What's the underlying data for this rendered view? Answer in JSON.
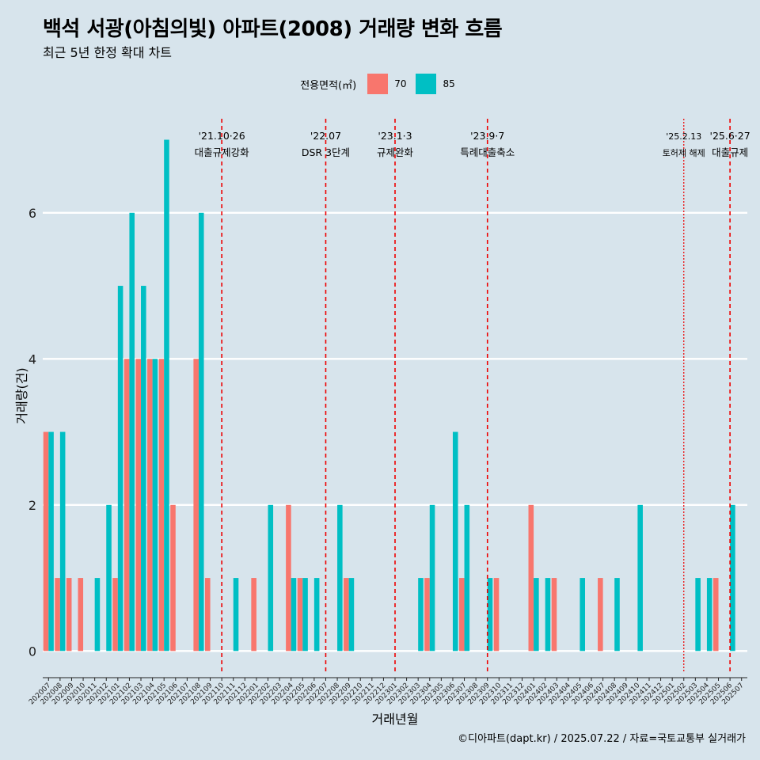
{
  "title": "백석 서광(아침의빛) 아파트(2008) 거래량 변화 흐름",
  "subtitle": "최근 5년 한정 확대 차트",
  "caption": "©디아파트(dapt.kr) / 2025.07.22 / 자료=국토교통부 실거래가",
  "legend": {
    "title": "전용면적(㎡)",
    "items": [
      {
        "label": "70",
        "color": "#f8766d"
      },
      {
        "label": "85",
        "color": "#00bfc4"
      }
    ]
  },
  "chart_data": {
    "type": "bar",
    "xlabel": "거래년월",
    "ylabel": "거래량(건)",
    "ylim": [
      -0.3,
      7.45
    ],
    "yticks": [
      0,
      2,
      4,
      6
    ],
    "categories": [
      "202007",
      "202008",
      "202009",
      "202010",
      "202011",
      "202012",
      "202101",
      "202102",
      "202103",
      "202104",
      "202105",
      "202106",
      "202107",
      "202108",
      "202109",
      "202110",
      "202111",
      "202112",
      "202201",
      "202202",
      "202203",
      "202204",
      "202205",
      "202206",
      "202207",
      "202208",
      "202209",
      "202210",
      "202211",
      "202212",
      "202301",
      "202302",
      "202303",
      "202304",
      "202305",
      "202306",
      "202307",
      "202308",
      "202309",
      "202310",
      "202311",
      "202312",
      "202401",
      "202402",
      "202403",
      "202404",
      "202405",
      "202406",
      "202407",
      "202408",
      "202409",
      "202410",
      "202411",
      "202412",
      "202501",
      "202502",
      "202503",
      "202504",
      "202505",
      "202506",
      "202507"
    ],
    "series": [
      {
        "name": "70",
        "color": "#f8766d",
        "values": [
          3,
          1,
          1,
          1,
          0,
          0,
          1,
          4,
          4,
          4,
          4,
          2,
          0,
          4,
          1,
          0,
          0,
          0,
          1,
          0,
          0,
          2,
          1,
          0,
          0,
          0,
          1,
          0,
          0,
          0,
          0,
          0,
          0,
          1,
          0,
          0,
          1,
          0,
          0,
          1,
          0,
          0,
          2,
          0,
          1,
          0,
          0,
          0,
          1,
          0,
          0,
          0,
          0,
          0,
          0,
          0,
          0,
          0,
          1,
          0,
          0
        ]
      },
      {
        "name": "85",
        "color": "#00bfc4",
        "values": [
          3,
          3,
          0,
          0,
          1,
          2,
          5,
          6,
          5,
          4,
          7,
          0,
          0,
          6,
          0,
          0,
          1,
          0,
          0,
          2,
          0,
          1,
          1,
          1,
          0,
          2,
          1,
          0,
          0,
          0,
          0,
          0,
          1,
          2,
          0,
          3,
          2,
          0,
          1,
          0,
          0,
          0,
          1,
          1,
          0,
          0,
          1,
          0,
          0,
          1,
          0,
          2,
          0,
          0,
          0,
          0,
          1,
          1,
          0,
          2,
          0
        ]
      }
    ],
    "annotations": [
      {
        "category": "202110",
        "line1": "'21.10·26",
        "line2": "대출규제강화",
        "style": "dashed",
        "small": false
      },
      {
        "category": "202207",
        "line1": "'22.07",
        "line2": "DSR 3단계",
        "style": "dashed",
        "small": false
      },
      {
        "category": "202301",
        "line1": "'23.1·3",
        "line2": "규제완화",
        "style": "dashed",
        "small": false
      },
      {
        "category": "202309",
        "line1": "'23.9·7",
        "line2": "특례대출축소",
        "style": "dashed",
        "small": false
      },
      {
        "category": "202502",
        "line1": "'25.2.13",
        "line2": "토허제 해제",
        "style": "dotted",
        "small": true
      },
      {
        "category": "202506",
        "line1": "'25.6·27",
        "line2": "대출규제",
        "style": "dashed",
        "small": false
      }
    ],
    "grid": true
  }
}
